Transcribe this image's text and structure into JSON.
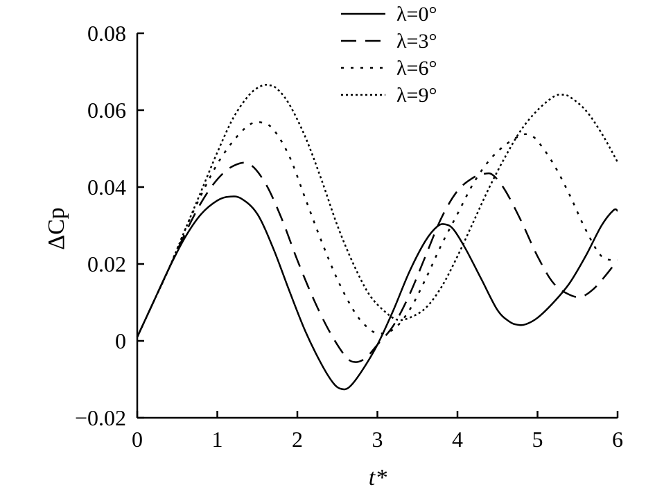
{
  "chart_data": {
    "type": "line",
    "title": "",
    "xlabel": "t*",
    "ylabel": "ΔCp",
    "xlim": [
      0,
      6
    ],
    "ylim": [
      -0.02,
      0.08
    ],
    "xticks": [
      0,
      1,
      2,
      3,
      4,
      5,
      6
    ],
    "xtick_labels": [
      "0",
      "1",
      "2",
      "3",
      "4",
      "5",
      "6"
    ],
    "yticks": [
      -0.02,
      0,
      0.02,
      0.04,
      0.06,
      0.08
    ],
    "ytick_labels": [
      "−0.02",
      "0",
      "0.02",
      "0.04",
      "0.06",
      "0.08"
    ],
    "grid": false,
    "legend_position": "top-right",
    "series": [
      {
        "name": "λ=0°",
        "style": "solid",
        "x": [
          0,
          0.2,
          0.4,
          0.6,
          0.8,
          1.0,
          1.15,
          1.3,
          1.5,
          1.7,
          1.9,
          2.1,
          2.3,
          2.45,
          2.55,
          2.65,
          2.8,
          3.0,
          3.2,
          3.4,
          3.6,
          3.75,
          3.85,
          3.95,
          4.1,
          4.3,
          4.5,
          4.65,
          4.75,
          4.85,
          5.0,
          5.2,
          5.4,
          5.6,
          5.8,
          5.95,
          6.0
        ],
        "y": [
          0.001,
          0.01,
          0.019,
          0.027,
          0.033,
          0.0365,
          0.0375,
          0.037,
          0.033,
          0.024,
          0.013,
          0.0025,
          -0.006,
          -0.011,
          -0.0125,
          -0.012,
          -0.008,
          -0.001,
          0.008,
          0.018,
          0.026,
          0.0298,
          0.0303,
          0.029,
          0.024,
          0.016,
          0.008,
          0.005,
          0.0042,
          0.0043,
          0.006,
          0.01,
          0.015,
          0.022,
          0.03,
          0.034,
          0.0338
        ]
      },
      {
        "name": "λ=3°",
        "style": "dashed",
        "x": [
          0,
          0.2,
          0.4,
          0.6,
          0.8,
          1.0,
          1.2,
          1.4,
          1.6,
          1.8,
          2.0,
          2.2,
          2.4,
          2.6,
          2.72,
          2.85,
          3.0,
          3.2,
          3.4,
          3.6,
          3.8,
          4.0,
          4.2,
          4.35,
          4.45,
          4.6,
          4.8,
          5.0,
          5.2,
          5.4,
          5.55,
          5.7,
          5.85,
          6.0
        ],
        "y": [
          0.001,
          0.01,
          0.019,
          0.028,
          0.036,
          0.042,
          0.0455,
          0.046,
          0.041,
          0.032,
          0.021,
          0.011,
          0.0025,
          -0.004,
          -0.0055,
          -0.0045,
          -0.001,
          0.004,
          0.012,
          0.022,
          0.032,
          0.039,
          0.0425,
          0.0435,
          0.043,
          0.039,
          0.031,
          0.022,
          0.015,
          0.012,
          0.0115,
          0.0135,
          0.017,
          0.021
        ]
      },
      {
        "name": "λ=6°",
        "style": "dashed-short",
        "x": [
          0,
          0.2,
          0.4,
          0.6,
          0.8,
          1.0,
          1.2,
          1.4,
          1.55,
          1.7,
          1.9,
          2.1,
          2.3,
          2.5,
          2.7,
          2.85,
          3.0,
          3.2,
          3.4,
          3.6,
          3.8,
          4.0,
          4.2,
          4.4,
          4.6,
          4.8,
          4.9,
          5.0,
          5.2,
          5.4,
          5.6,
          5.8,
          6.0
        ],
        "y": [
          0.001,
          0.01,
          0.019,
          0.029,
          0.038,
          0.046,
          0.052,
          0.0562,
          0.0568,
          0.055,
          0.048,
          0.037,
          0.026,
          0.016,
          0.008,
          0.004,
          0.002,
          0.003,
          0.008,
          0.016,
          0.025,
          0.033,
          0.041,
          0.047,
          0.051,
          0.0535,
          0.0535,
          0.052,
          0.046,
          0.038,
          0.029,
          0.022,
          0.021
        ]
      },
      {
        "name": "λ=9°",
        "style": "dotted",
        "x": [
          0,
          0.2,
          0.4,
          0.6,
          0.8,
          1.0,
          1.2,
          1.4,
          1.55,
          1.65,
          1.75,
          1.9,
          2.1,
          2.3,
          2.5,
          2.7,
          2.9,
          3.1,
          3.25,
          3.4,
          3.6,
          3.8,
          4.0,
          4.2,
          4.4,
          4.6,
          4.8,
          5.0,
          5.2,
          5.3,
          5.4,
          5.6,
          5.8,
          6.0
        ],
        "y": [
          0.001,
          0.01,
          0.019,
          0.029,
          0.039,
          0.049,
          0.058,
          0.064,
          0.0663,
          0.0665,
          0.0655,
          0.0615,
          0.053,
          0.042,
          0.03,
          0.02,
          0.012,
          0.0075,
          0.0055,
          0.006,
          0.0085,
          0.014,
          0.022,
          0.031,
          0.04,
          0.048,
          0.055,
          0.06,
          0.0635,
          0.064,
          0.0635,
          0.06,
          0.054,
          0.0465
        ]
      }
    ]
  }
}
